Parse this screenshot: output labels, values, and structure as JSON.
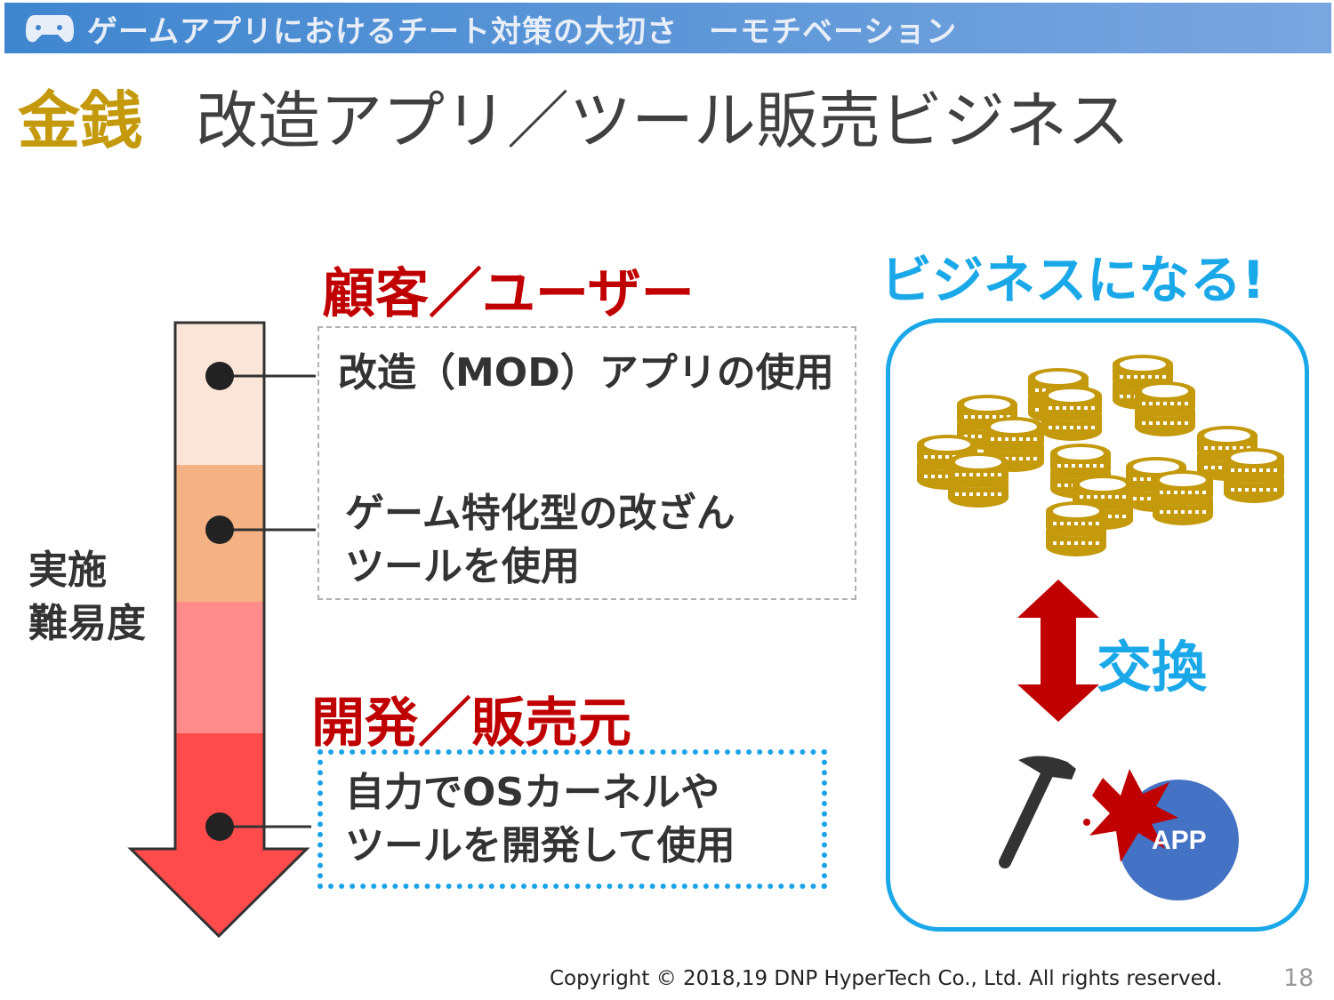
{
  "header": {
    "banner": "ゲームアプリにおけるチート対策の大切さ　ーモチベーション",
    "icon": "gamepad-icon"
  },
  "title": {
    "accent": "金銭",
    "main": "改造アプリ／ツール販売ビジネス"
  },
  "left": {
    "difficulty_label": [
      "実施",
      "難易度"
    ],
    "customer_heading": "顧客／ユーザー",
    "customer_items": [
      "改造（MOD）アプリの使用",
      [
        "ゲーム特化型の改ざん",
        "ツールを使用"
      ]
    ],
    "developer_heading": "開発／販売元",
    "developer_item": [
      "自力でOSカーネルや",
      "ツールを開発して使用"
    ],
    "arrow_colors": [
      "#fbe5d8",
      "#f4b183",
      "#ff8b8b",
      "#ff4b4b"
    ]
  },
  "right": {
    "heading": "ビジネスになる!",
    "exchange": "交換",
    "app_label": "APP",
    "coin_color": "#c49a0c",
    "accent": "#1aa8e8"
  },
  "footer": {
    "copyright": "Copyright © 2018,19 DNP HyperTech Co., Ltd. All rights reserved.",
    "page": "18"
  }
}
